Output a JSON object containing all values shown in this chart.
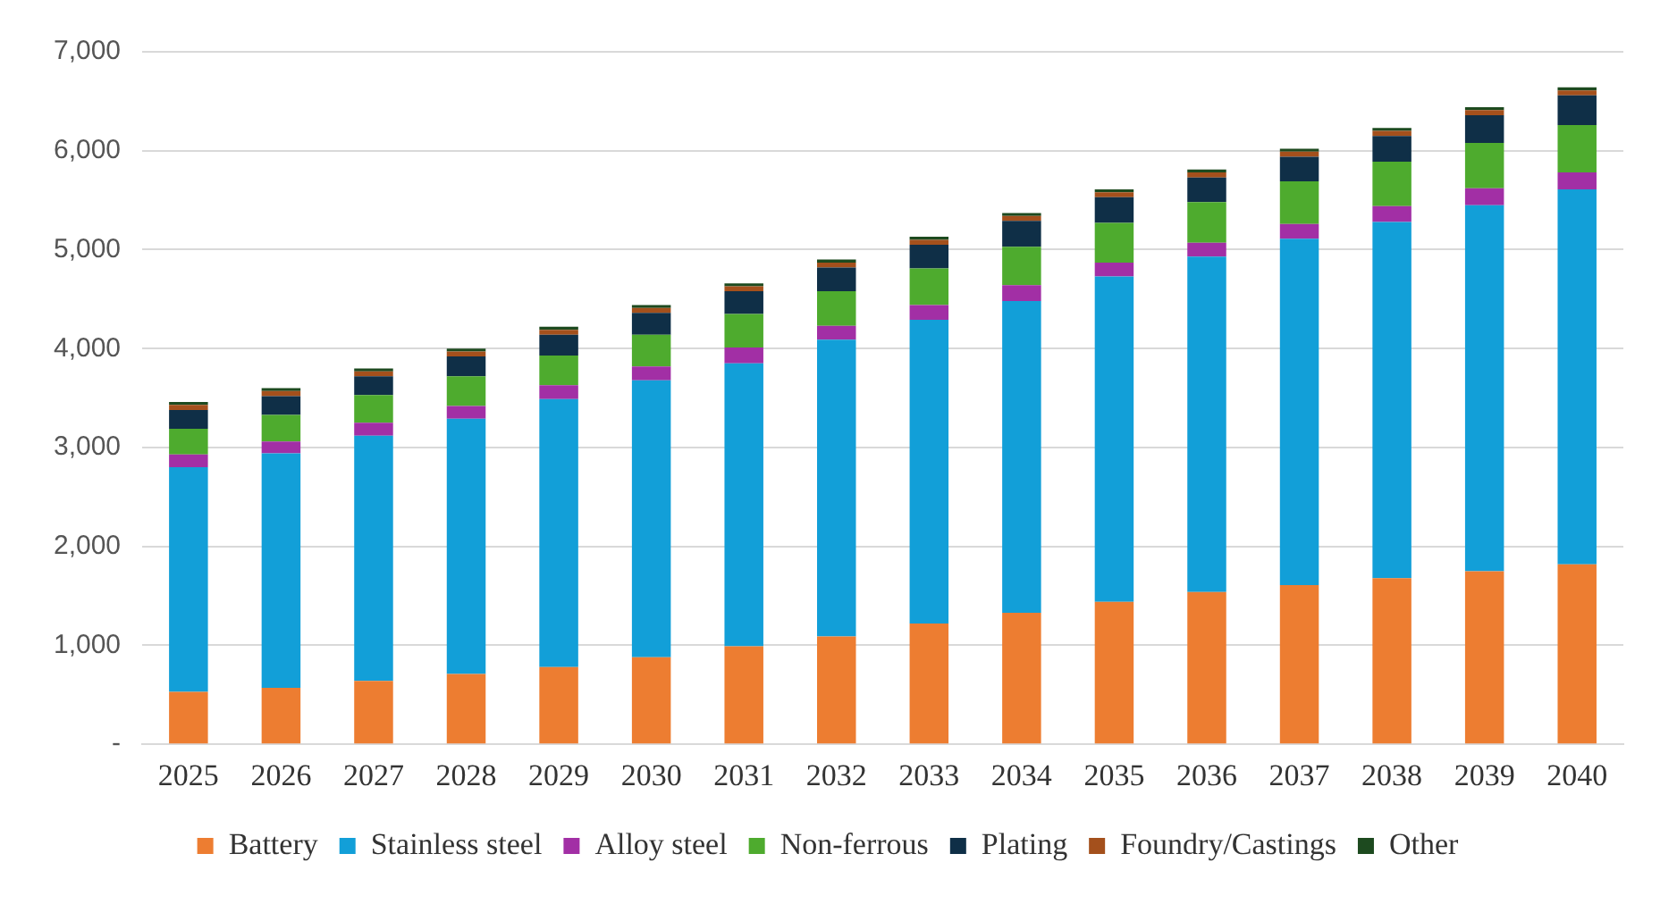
{
  "chart_data": {
    "type": "bar",
    "stacked": true,
    "categories": [
      "2025",
      "2026",
      "2027",
      "2028",
      "2029",
      "2030",
      "2031",
      "2032",
      "2033",
      "2034",
      "2035",
      "2036",
      "2037",
      "2038",
      "2039",
      "2040"
    ],
    "series": [
      {
        "name": "Battery",
        "color": "#ed7d31",
        "values": [
          530,
          570,
          640,
          710,
          780,
          880,
          990,
          1090,
          1220,
          1330,
          1440,
          1540,
          1610,
          1680,
          1750,
          1820
        ]
      },
      {
        "name": "Stainless steel",
        "color": "#129fd8",
        "values": [
          2270,
          2370,
          2480,
          2580,
          2710,
          2800,
          2860,
          3000,
          3070,
          3150,
          3290,
          3390,
          3500,
          3600,
          3700,
          3790
        ]
      },
      {
        "name": "Alloy steel",
        "color": "#a22fa5",
        "values": [
          130,
          120,
          130,
          130,
          140,
          140,
          160,
          140,
          150,
          160,
          140,
          140,
          150,
          160,
          170,
          170
        ]
      },
      {
        "name": "Non-ferrous",
        "color": "#4eab2e",
        "values": [
          260,
          270,
          280,
          300,
          300,
          320,
          340,
          350,
          370,
          390,
          400,
          410,
          430,
          450,
          460,
          480
        ]
      },
      {
        "name": "Plating",
        "color": "#0f2f47",
        "values": [
          190,
          190,
          190,
          200,
          210,
          220,
          230,
          240,
          240,
          260,
          260,
          250,
          250,
          260,
          280,
          300
        ]
      },
      {
        "name": "Foundry/Castings",
        "color": "#a4501c",
        "values": [
          50,
          50,
          50,
          50,
          50,
          50,
          50,
          50,
          50,
          50,
          50,
          50,
          50,
          50,
          50,
          50
        ]
      },
      {
        "name": "Other",
        "color": "#1d4a1f",
        "values": [
          30,
          30,
          30,
          30,
          30,
          30,
          30,
          30,
          30,
          30,
          30,
          30,
          30,
          30,
          30,
          30
        ]
      }
    ],
    "ylim": [
      0,
      7000
    ],
    "yticks": [
      {
        "value": 0,
        "label": "-"
      },
      {
        "value": 1000,
        "label": "1,000"
      },
      {
        "value": 2000,
        "label": "2,000"
      },
      {
        "value": 3000,
        "label": "3,000"
      },
      {
        "value": 4000,
        "label": "4,000"
      },
      {
        "value": 5000,
        "label": "5,000"
      },
      {
        "value": 6000,
        "label": "6,000"
      },
      {
        "value": 7000,
        "label": "7,000"
      }
    ],
    "grid": "y",
    "legend": "bottom"
  }
}
